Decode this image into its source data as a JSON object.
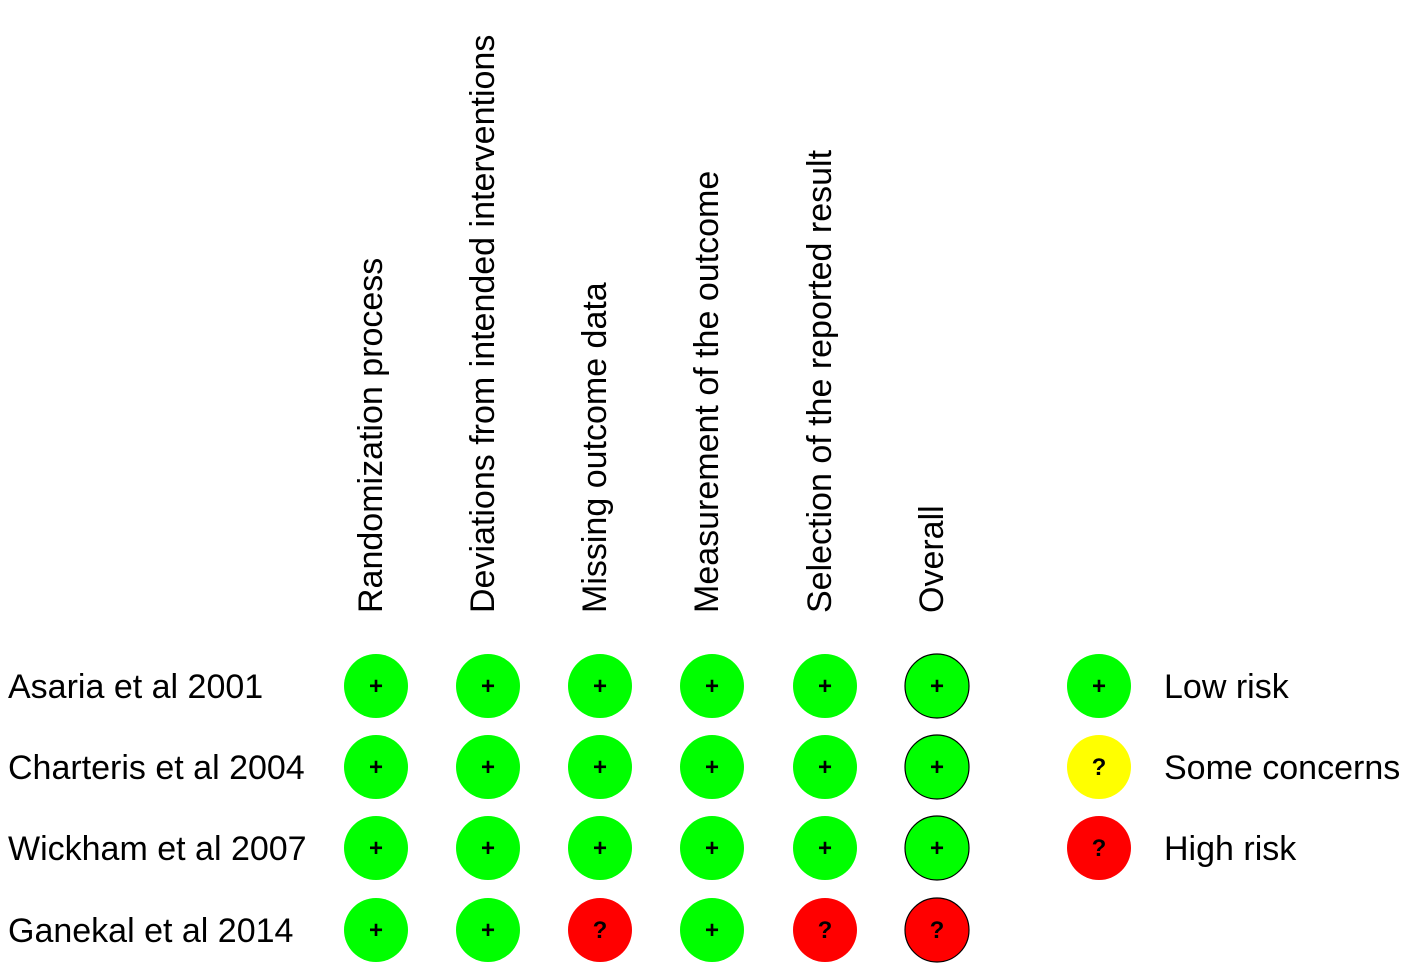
{
  "chart_data": {
    "type": "table",
    "columns": [
      "Randomization process",
      "Deviations from intended interventions",
      "Missing outcome data",
      "Measurement of the outcome",
      "Selection of the reported result",
      "Overall"
    ],
    "studies": [
      "Asaria et al 2001",
      "Charteris et al 2004",
      "Wickham et al 2007",
      "Ganekal et al 2014"
    ],
    "judgements": [
      [
        "low",
        "low",
        "low",
        "low",
        "low",
        "low"
      ],
      [
        "low",
        "low",
        "low",
        "low",
        "low",
        "low"
      ],
      [
        "low",
        "low",
        "low",
        "low",
        "low",
        "low"
      ],
      [
        "low",
        "low",
        "high",
        "low",
        "high",
        "high"
      ]
    ],
    "legend": [
      {
        "key": "low",
        "label": "Low risk"
      },
      {
        "key": "some",
        "label": "Some concerns"
      },
      {
        "key": "high",
        "label": "High risk"
      }
    ],
    "levels": {
      "low": {
        "color": "#00ff00",
        "symbol": "+"
      },
      "some": {
        "color": "#ffff00",
        "symbol": "?"
      },
      "high": {
        "color": "#ff0000",
        "symbol": "?"
      }
    }
  }
}
